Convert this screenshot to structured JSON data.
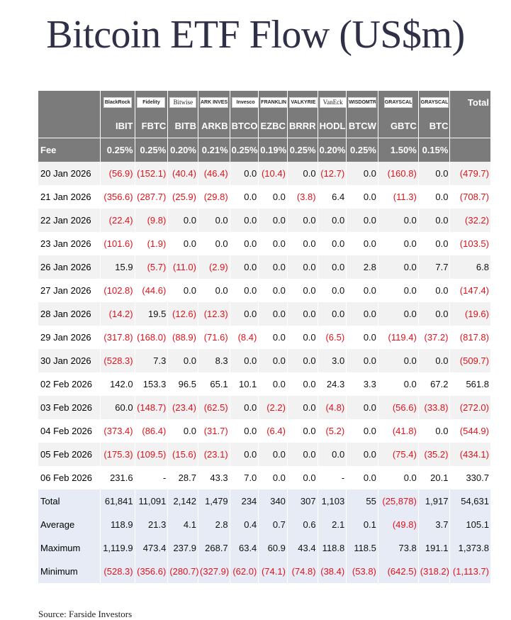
{
  "title": "Bitcoin ETF Flow (US$m)",
  "columns": [
    {
      "issuer": "BlackRock",
      "ticker": "IBIT",
      "fee": "0.25%"
    },
    {
      "issuer": "Fidelity",
      "ticker": "FBTC",
      "fee": "0.25%"
    },
    {
      "issuer": "Bitwise",
      "ticker": "BITB",
      "fee": "0.20%"
    },
    {
      "issuer": "ARK INVEST",
      "ticker": "ARKB",
      "fee": "0.21%"
    },
    {
      "issuer": "Invesco",
      "ticker": "BTCO",
      "fee": "0.25%"
    },
    {
      "issuer": "FRANKLIN TEMPLETON",
      "ticker": "EZBC",
      "fee": "0.19%"
    },
    {
      "issuer": "VALKYRIE",
      "ticker": "BRRR",
      "fee": "0.25%"
    },
    {
      "issuer": "VanEck",
      "ticker": "HODL",
      "fee": "0.20%"
    },
    {
      "issuer": "WISDOMTREE",
      "ticker": "BTCW",
      "fee": "0.25%"
    },
    {
      "issuer": "GRAYSCALE",
      "ticker": "GBTC",
      "fee": "1.50%"
    },
    {
      "issuer": "GRAYSCALE",
      "ticker": "BTC",
      "fee": "0.15%"
    }
  ],
  "header": {
    "total_label": "Total",
    "fee_label": "Fee"
  },
  "rows": [
    {
      "date": "20 Jan 2026",
      "values": [
        "(56.9)",
        "(152.1)",
        "(40.4)",
        "(46.4)",
        "0.0",
        "(10.4)",
        "0.0",
        "(12.7)",
        "0.0",
        "(160.8)",
        "0.0"
      ],
      "total": "(479.7)"
    },
    {
      "date": "21 Jan 2026",
      "values": [
        "(356.6)",
        "(287.7)",
        "(25.9)",
        "(29.8)",
        "0.0",
        "0.0",
        "(3.8)",
        "6.4",
        "0.0",
        "(11.3)",
        "0.0"
      ],
      "total": "(708.7)"
    },
    {
      "date": "22 Jan 2026",
      "values": [
        "(22.4)",
        "(9.8)",
        "0.0",
        "0.0",
        "0.0",
        "0.0",
        "0.0",
        "0.0",
        "0.0",
        "0.0",
        "0.0"
      ],
      "total": "(32.2)"
    },
    {
      "date": "23 Jan 2026",
      "values": [
        "(101.6)",
        "(1.9)",
        "0.0",
        "0.0",
        "0.0",
        "0.0",
        "0.0",
        "0.0",
        "0.0",
        "0.0",
        "0.0"
      ],
      "total": "(103.5)"
    },
    {
      "date": "26 Jan 2026",
      "values": [
        "15.9",
        "(5.7)",
        "(11.0)",
        "(2.9)",
        "0.0",
        "0.0",
        "0.0",
        "0.0",
        "2.8",
        "0.0",
        "7.7"
      ],
      "total": "6.8"
    },
    {
      "date": "27 Jan 2026",
      "values": [
        "(102.8)",
        "(44.6)",
        "0.0",
        "0.0",
        "0.0",
        "0.0",
        "0.0",
        "0.0",
        "0.0",
        "0.0",
        "0.0"
      ],
      "total": "(147.4)"
    },
    {
      "date": "28 Jan 2026",
      "values": [
        "(14.2)",
        "19.5",
        "(12.6)",
        "(12.3)",
        "0.0",
        "0.0",
        "0.0",
        "0.0",
        "0.0",
        "0.0",
        "0.0"
      ],
      "total": "(19.6)"
    },
    {
      "date": "29 Jan 2026",
      "values": [
        "(317.8)",
        "(168.0)",
        "(88.9)",
        "(71.6)",
        "(8.4)",
        "0.0",
        "0.0",
        "(6.5)",
        "0.0",
        "(119.4)",
        "(37.2)"
      ],
      "total": "(817.8)"
    },
    {
      "date": "30 Jan 2026",
      "values": [
        "(528.3)",
        "7.3",
        "0.0",
        "8.3",
        "0.0",
        "0.0",
        "0.0",
        "3.0",
        "0.0",
        "0.0",
        "0.0"
      ],
      "total": "(509.7)"
    },
    {
      "date": "02 Feb 2026",
      "values": [
        "142.0",
        "153.3",
        "96.5",
        "65.1",
        "10.1",
        "0.0",
        "0.0",
        "24.3",
        "3.3",
        "0.0",
        "67.2"
      ],
      "total": "561.8"
    },
    {
      "date": "03 Feb 2026",
      "values": [
        "60.0",
        "(148.7)",
        "(23.4)",
        "(62.5)",
        "0.0",
        "(2.2)",
        "0.0",
        "(4.8)",
        "0.0",
        "(56.6)",
        "(33.8)"
      ],
      "total": "(272.0)"
    },
    {
      "date": "04 Feb 2026",
      "values": [
        "(373.4)",
        "(86.4)",
        "0.0",
        "(31.7)",
        "0.0",
        "(6.4)",
        "0.0",
        "(5.2)",
        "0.0",
        "(41.8)",
        "0.0"
      ],
      "total": "(544.9)"
    },
    {
      "date": "05 Feb 2026",
      "values": [
        "(175.3)",
        "(109.5)",
        "(15.6)",
        "(23.1)",
        "0.0",
        "0.0",
        "0.0",
        "0.0",
        "0.0",
        "(75.4)",
        "(35.2)"
      ],
      "total": "(434.1)"
    },
    {
      "date": "06 Feb 2026",
      "values": [
        "231.6",
        "-",
        "28.7",
        "43.3",
        "7.0",
        "0.0",
        "0.0",
        "-",
        "0.0",
        "0.0",
        "20.1"
      ],
      "total": "330.7"
    }
  ],
  "summary": [
    {
      "label": "Total",
      "values": [
        "61,841",
        "11,091",
        "2,142",
        "1,479",
        "234",
        "340",
        "307",
        "1,103",
        "55",
        "(25,878)",
        "1,917"
      ],
      "total": "54,631"
    },
    {
      "label": "Average",
      "values": [
        "118.9",
        "21.3",
        "4.1",
        "2.8",
        "0.4",
        "0.7",
        "0.6",
        "2.1",
        "0.1",
        "(49.8)",
        "3.7"
      ],
      "total": "105.1"
    },
    {
      "label": "Maximum",
      "values": [
        "1,119.9",
        "473.4",
        "237.9",
        "268.7",
        "63.4",
        "60.9",
        "43.4",
        "118.8",
        "118.5",
        "73.8",
        "191.1"
      ],
      "total": "1,373.8"
    },
    {
      "label": "Minimum",
      "values": [
        "(528.3)",
        "(356.6)",
        "(280.7)",
        "(327.9)",
        "(62.0)",
        "(74.1)",
        "(74.8)",
        "(38.4)",
        "(53.8)",
        "(642.5)",
        "(318.2)"
      ],
      "total": "(1,113.7)"
    }
  ],
  "source": "Source: Farside Investors",
  "colors": {
    "header_bg": "#7b7b7b",
    "negative": "#e0121b",
    "summary_bg": "#e6ebf5",
    "title": "#2f3047"
  }
}
